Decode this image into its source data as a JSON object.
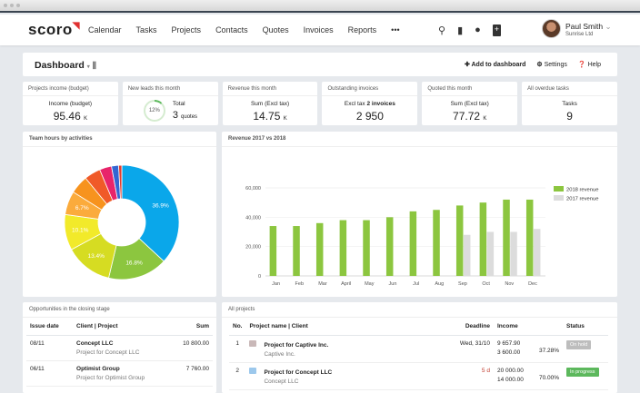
{
  "nav": {
    "logo": "scoro",
    "items": [
      "Calendar",
      "Tasks",
      "Projects",
      "Contacts",
      "Quotes",
      "Invoices",
      "Reports",
      "•••"
    ],
    "user_name": "Paul Smith",
    "user_company": "Sunrise Ltd"
  },
  "dashboard": {
    "title": "Dashboard",
    "add": "Add to dashboard",
    "settings": "Settings",
    "help": "Help"
  },
  "kpis": [
    {
      "title": "Projects income (budget)",
      "label": "Income (budget)",
      "value": "95.46",
      "unit": "K"
    },
    {
      "title": "New leads this month",
      "label": "Total",
      "value": "3",
      "unit": "quotes",
      "progress": "12%"
    },
    {
      "title": "Revenue this month",
      "label": "Sum (Excl tax)",
      "value": "14.75",
      "unit": "K"
    },
    {
      "title": "Outstanding invoices",
      "label": "Excl tax",
      "label_bold": "2 invoices",
      "value": "2 950",
      "unit": ""
    },
    {
      "title": "Quoted this month",
      "label": "Sum (Excl tax)",
      "value": "77.72",
      "unit": "K"
    },
    {
      "title": "All overdue tasks",
      "label": "Tasks",
      "value": "9",
      "unit": ""
    }
  ],
  "chart_data": [
    {
      "type": "pie",
      "title": "Team hours by activities",
      "donut": true,
      "values": [
        36.9,
        16.8,
        13.4,
        10.1,
        6.7,
        5.2,
        4.6,
        3.4,
        2.0,
        0.9
      ],
      "labels": [
        "36.9%",
        "16.8%",
        "13.4%",
        "10.1%",
        "6.7%",
        "",
        "",
        "",
        "",
        ""
      ],
      "colors": [
        "#0aa7ea",
        "#8cc63f",
        "#d6dc22",
        "#f2ea2a",
        "#fbab3c",
        "#f7931e",
        "#f05a28",
        "#e8246a",
        "#3466d2",
        "#e33b2e"
      ]
    },
    {
      "type": "bar",
      "title": "Revenue 2017 vs 2018",
      "categories": [
        "Jan",
        "Feb",
        "Mar",
        "April",
        "May",
        "Jun",
        "Jul",
        "Aug",
        "Sep",
        "Oct",
        "Nov",
        "Dec"
      ],
      "series": [
        {
          "name": "2018 revenue",
          "color": "#8cc63f",
          "values": [
            34000,
            34000,
            36000,
            38000,
            38000,
            40000,
            44000,
            45000,
            48000,
            50000,
            52000,
            52000
          ]
        },
        {
          "name": "2017 revenue",
          "color": "#dcdcdc",
          "values": [
            null,
            null,
            null,
            null,
            null,
            null,
            null,
            null,
            28000,
            30000,
            30000,
            32000
          ]
        }
      ],
      "ylim": [
        0,
        60000
      ],
      "yticks": [
        "0",
        "20,000",
        "40,000",
        "60,000"
      ],
      "grid": true,
      "legend": "top-right"
    }
  ],
  "opportunities": {
    "title": "Opportunities in the closing stage",
    "headers": [
      "Issue date",
      "Client | Project",
      "Sum"
    ],
    "rows": [
      {
        "date": "08/11",
        "client": "Concept LLC",
        "project": "Project for Concept LLC",
        "sum": "10 800.00"
      },
      {
        "date": "06/11",
        "client": "Optimist Group",
        "project": "Project for Optimist Group",
        "sum": "7 760.00"
      }
    ]
  },
  "projects": {
    "title": "All projects",
    "headers": [
      "No.",
      "Project name | Client",
      "Deadline",
      "Income",
      "",
      "Status"
    ],
    "rows": [
      {
        "no": "1",
        "name": "Project for Captive Inc.",
        "client": "Captive Inc.",
        "deadline": "Wed, 31/10",
        "income1": "9 657.90",
        "income2": "3 600.00",
        "pct": "37.28%",
        "status": "On hold",
        "status_color": "#bdbdbd",
        "icon_color": "#c9b8b8"
      },
      {
        "no": "2",
        "name": "Project for Concept LLC",
        "client": "Concept LLC",
        "deadline": "5 d",
        "income1": "20 000.00",
        "income2": "14 000.00",
        "pct": "70.00%",
        "status": "In progress",
        "status_color": "#5cb85c",
        "icon_color": "#9cc8ec"
      }
    ]
  }
}
